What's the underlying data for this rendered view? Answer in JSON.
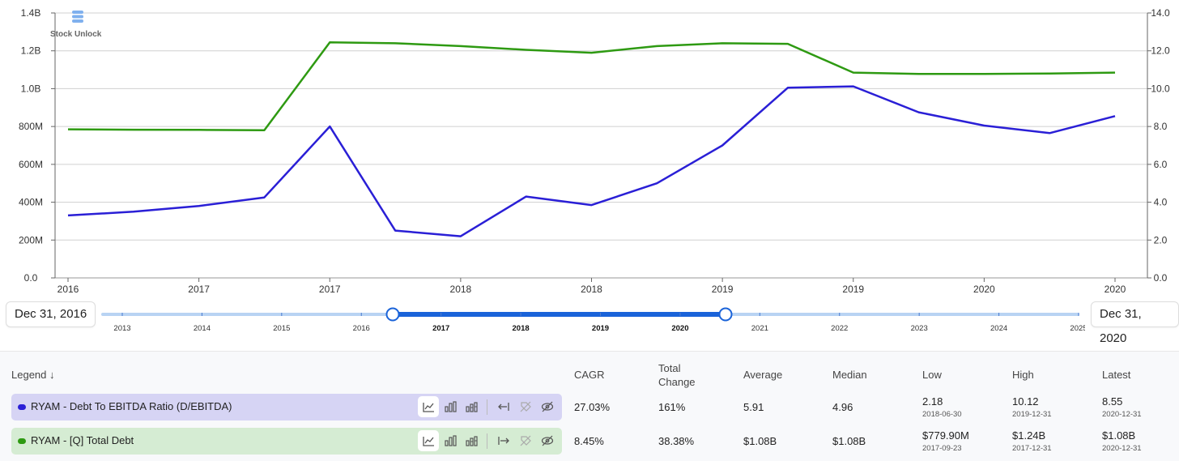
{
  "chart_data": {
    "type": "line",
    "x_labels": [
      "2016",
      "2017",
      "2017",
      "2018",
      "2018",
      "2019",
      "2019",
      "2020",
      "2020"
    ],
    "y_left_ticks": [
      "0.0",
      "200M",
      "400M",
      "600M",
      "800M",
      "1.0B",
      "1.2B",
      "1.4B"
    ],
    "y_right_ticks": [
      "0.0",
      "2.0",
      "4.0",
      "6.0",
      "8.0",
      "10.0",
      "12.0",
      "14.0"
    ],
    "ylim_left": [
      0,
      1400000000
    ],
    "ylim_right": [
      0,
      14
    ],
    "grid": true,
    "series": [
      {
        "name": "RYAM - Debt To EBITDA Ratio (D/EBITDA)",
        "axis": "right",
        "color": "#2a1fd6",
        "values": [
          3.3,
          3.5,
          3.8,
          4.25,
          8.0,
          2.5,
          2.2,
          4.3,
          3.85,
          5.0,
          7.0,
          10.05,
          10.12,
          8.75,
          8.05,
          7.65,
          8.55
        ]
      },
      {
        "name": "RYAM - [Q] Total Debt",
        "axis": "left",
        "color": "#2e9a12",
        "values": [
          785000000,
          783000000,
          782000000,
          780000000,
          1245000000,
          1240000000,
          1225000000,
          1205000000,
          1190000000,
          1225000000,
          1240000000,
          1237000000,
          1085000000,
          1078000000,
          1078000000,
          1080000000,
          1085000000
        ]
      }
    ]
  },
  "logo": {
    "text": "Stock Unlock",
    "icon": "stock-unlock-logo-icon"
  },
  "range": {
    "start": "Dec 31, 2016",
    "end": "Dec 31, 2020",
    "years": [
      "2013",
      "2014",
      "2015",
      "2016",
      "2017",
      "2018",
      "2019",
      "2020",
      "2021",
      "2022",
      "2023",
      "2024",
      "2025"
    ],
    "selected_years": [
      "2017",
      "2018",
      "2019",
      "2020"
    ]
  },
  "legend": {
    "header": {
      "legend": "Legend",
      "cagr": "CAGR",
      "total_change": "Total Change",
      "average": "Average",
      "median": "Median",
      "low": "Low",
      "high": "High",
      "latest": "Latest"
    },
    "rows": [
      {
        "label": "RYAM - Debt To EBITDA Ratio (D/EBITDA)",
        "color": "#2a1fd6",
        "bg": "#d6d4f4",
        "cagr": "27.03%",
        "total_change": "161%",
        "average": "5.91",
        "median": "4.96",
        "low": "2.18",
        "low_date": "2018-06-30",
        "high": "10.12",
        "high_date": "2019-12-31",
        "latest": "8.55",
        "latest_date": "2020-12-31"
      },
      {
        "label": "RYAM - [Q] Total Debt",
        "color": "#2e9a12",
        "bg": "#d5ecd3",
        "cagr": "8.45%",
        "total_change": "38.38%",
        "average": "$1.08B",
        "median": "$1.08B",
        "low": "$779.90M",
        "low_date": "2017-09-23",
        "high": "$1.24B",
        "high_date": "2017-12-31",
        "latest": "$1.08B",
        "latest_date": "2020-12-31"
      }
    ]
  }
}
